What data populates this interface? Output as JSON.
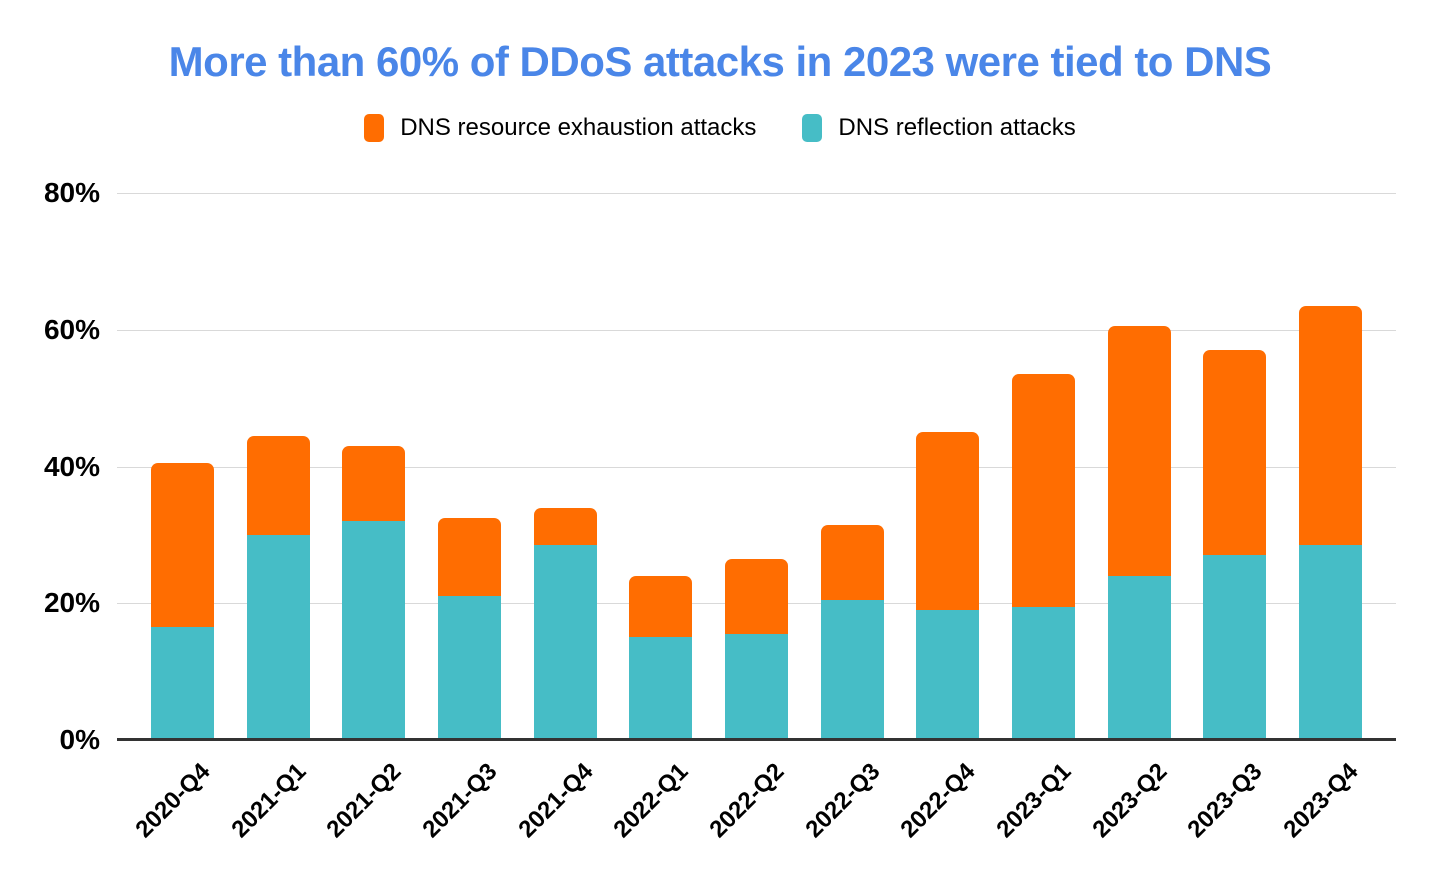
{
  "chart_data": {
    "type": "bar",
    "stacked": true,
    "title": "More than 60% of DDoS attacks in 2023 were tied to DNS",
    "title_color": "#4a86e8",
    "categories": [
      "2020-Q4",
      "2021-Q1",
      "2021-Q2",
      "2021-Q3",
      "2021-Q4",
      "2022-Q1",
      "2022-Q2",
      "2022-Q3",
      "2022-Q4",
      "2023-Q1",
      "2023-Q2",
      "2023-Q3",
      "2023-Q4"
    ],
    "series": [
      {
        "name": "DNS resource exhaustion attacks",
        "color": "#ff6d01",
        "values": [
          24,
          14.5,
          11,
          11.5,
          5.5,
          9,
          11,
          11,
          26,
          34,
          36.5,
          30,
          35
        ]
      },
      {
        "name": "DNS reflection attacks",
        "color": "#46bdc6",
        "values": [
          16.5,
          30,
          32,
          21,
          28.5,
          15,
          15.5,
          20.5,
          19,
          19.5,
          24,
          27,
          28.5
        ]
      }
    ],
    "stack_totals": [
      40.5,
      44.5,
      43,
      32.5,
      34,
      24,
      26.5,
      31.5,
      45,
      53.5,
      60.5,
      57,
      63.5
    ],
    "stack_order_bottom_to_top": [
      "DNS reflection attacks",
      "DNS resource exhaustion attacks"
    ],
    "xlabel": "",
    "ylabel": "",
    "ylim": [
      0,
      80
    ],
    "ytick_values": [
      80,
      60,
      40,
      20,
      0
    ],
    "ytick_labels": [
      "80%",
      "60%",
      "40%",
      "20%",
      "0%"
    ],
    "grid": "horizontal",
    "legend_position": "top",
    "bar_style": "rounded-top"
  },
  "colors": {
    "exhaustion_orange": "#ff6d01",
    "reflection_teal": "#46bdc6",
    "title_blue": "#4a86e8",
    "gridline": "#d9d9d9",
    "axis_line": "#333333",
    "text": "#000000",
    "background": "#ffffff"
  }
}
